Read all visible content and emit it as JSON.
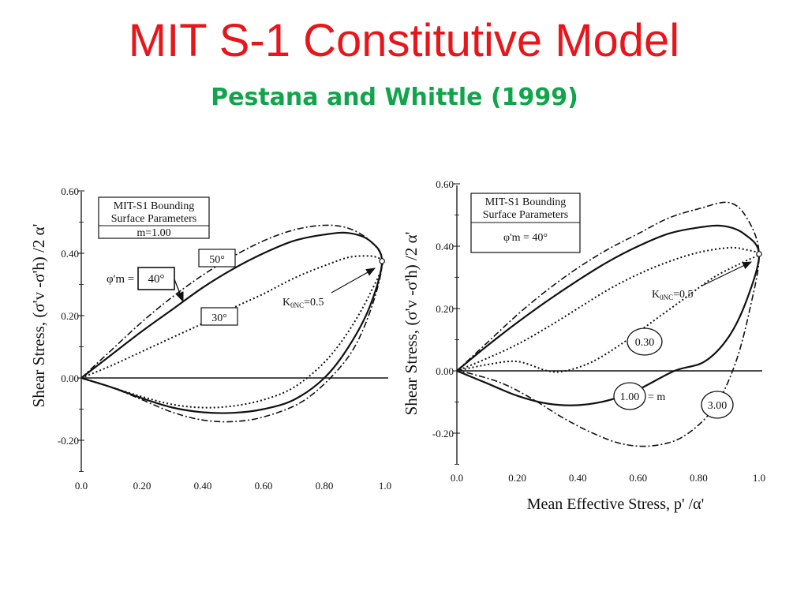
{
  "slide": {
    "title": "MIT S-1 Constitutive Model",
    "subtitle": "Pestana and Whittle (1999)"
  },
  "colors": {
    "title": "#e8161b",
    "subtitle": "#10a54a",
    "curves": "#111111"
  },
  "chart_data": [
    {
      "type": "line",
      "title": "",
      "xlabel": "",
      "ylabel": "Shear Stress, (σ'v -σ'h) /2 α'",
      "xlim": [
        0.0,
        1.0
      ],
      "ylim": [
        -0.3,
        0.6
      ],
      "x_ticks": [
        "0.0",
        "0.20",
        "0.40",
        "0.60",
        "0.80",
        "1.0"
      ],
      "y_ticks": [
        "0.60",
        "0.40",
        "0.20",
        "0.00",
        "-0.20"
      ],
      "legend_box": [
        "MIT-S1 Bounding",
        "Surface Parameters",
        "m=1.00"
      ],
      "labels": {
        "phi": "φ'm =",
        "phi_center": "40°",
        "phi_high": "50°",
        "phi_low": "30°",
        "k0": "K0NC=0.5"
      },
      "k0_point": {
        "x": 0.99,
        "y": 0.375
      },
      "series": [
        {
          "name": "50°",
          "style": "dash-dot",
          "points": [
            [
              0,
              0
            ],
            [
              0.1,
              0.09
            ],
            [
              0.2,
              0.18
            ],
            [
              0.3,
              0.26
            ],
            [
              0.4,
              0.33
            ],
            [
              0.5,
              0.39
            ],
            [
              0.6,
              0.44
            ],
            [
              0.7,
              0.475
            ],
            [
              0.8,
              0.49
            ],
            [
              0.88,
              0.48
            ],
            [
              0.95,
              0.44
            ],
            [
              0.99,
              0.375
            ],
            [
              0.96,
              0.24
            ],
            [
              0.9,
              0.1
            ],
            [
              0.82,
              0.0
            ],
            [
              0.72,
              -0.08
            ],
            [
              0.6,
              -0.125
            ],
            [
              0.5,
              -0.14
            ],
            [
              0.4,
              -0.135
            ],
            [
              0.3,
              -0.11
            ],
            [
              0.2,
              -0.07
            ],
            [
              0.1,
              -0.03
            ],
            [
              0,
              0
            ]
          ]
        },
        {
          "name": "40°",
          "style": "solid",
          "points": [
            [
              0,
              0
            ],
            [
              0.1,
              0.075
            ],
            [
              0.2,
              0.15
            ],
            [
              0.3,
              0.22
            ],
            [
              0.4,
              0.29
            ],
            [
              0.5,
              0.35
            ],
            [
              0.6,
              0.4
            ],
            [
              0.7,
              0.44
            ],
            [
              0.8,
              0.46
            ],
            [
              0.88,
              0.465
            ],
            [
              0.95,
              0.44
            ],
            [
              0.99,
              0.375
            ],
            [
              0.95,
              0.23
            ],
            [
              0.88,
              0.1
            ],
            [
              0.8,
              0.0
            ],
            [
              0.7,
              -0.07
            ],
            [
              0.6,
              -0.1
            ],
            [
              0.5,
              -0.112
            ],
            [
              0.4,
              -0.11
            ],
            [
              0.3,
              -0.095
            ],
            [
              0.2,
              -0.065
            ],
            [
              0.1,
              -0.03
            ],
            [
              0,
              0
            ]
          ]
        },
        {
          "name": "30°",
          "style": "dotted",
          "points": [
            [
              0,
              0
            ],
            [
              0.1,
              0.04
            ],
            [
              0.2,
              0.085
            ],
            [
              0.3,
              0.13
            ],
            [
              0.4,
              0.175
            ],
            [
              0.5,
              0.225
            ],
            [
              0.6,
              0.27
            ],
            [
              0.7,
              0.32
            ],
            [
              0.8,
              0.36
            ],
            [
              0.9,
              0.39
            ],
            [
              0.99,
              0.375
            ],
            [
              0.95,
              0.27
            ],
            [
              0.88,
              0.15
            ],
            [
              0.8,
              0.05
            ],
            [
              0.7,
              -0.03
            ],
            [
              0.6,
              -0.07
            ],
            [
              0.5,
              -0.09
            ],
            [
              0.4,
              -0.095
            ],
            [
              0.3,
              -0.085
            ],
            [
              0.2,
              -0.06
            ],
            [
              0.1,
              -0.03
            ],
            [
              0,
              0
            ]
          ]
        }
      ]
    },
    {
      "type": "line",
      "title": "",
      "xlabel": "Mean Effective Stress, p' /α'",
      "ylabel": "Shear Stress, (σ'v -σ'h) /2 α'",
      "xlim": [
        0.0,
        1.0
      ],
      "ylim": [
        -0.3,
        0.6
      ],
      "x_ticks": [
        "0.0",
        "0.20",
        "0.40",
        "0.60",
        "0.80",
        "1.0"
      ],
      "y_ticks": [
        "0.60",
        "0.40",
        "0.20",
        "0.00",
        "-0.20"
      ],
      "legend_box": [
        "MIT-S1 Bounding",
        "Surface Parameters",
        "φ'm = 40°"
      ],
      "labels": {
        "k0": "K0NC=0.5",
        "m_low": "0.30",
        "m_mid": "1.00",
        "m_mid_suffix": "= m",
        "m_high": "3.00"
      },
      "k0_point": {
        "x": 1.0,
        "y": 0.375
      },
      "series": [
        {
          "name": "3.00",
          "style": "dash-dot",
          "points": [
            [
              0,
              0
            ],
            [
              0.1,
              0.09
            ],
            [
              0.2,
              0.18
            ],
            [
              0.3,
              0.26
            ],
            [
              0.4,
              0.33
            ],
            [
              0.5,
              0.39
            ],
            [
              0.6,
              0.44
            ],
            [
              0.7,
              0.49
            ],
            [
              0.8,
              0.52
            ],
            [
              0.9,
              0.54
            ],
            [
              0.96,
              0.49
            ],
            [
              1.0,
              0.375
            ],
            [
              0.97,
              0.2
            ],
            [
              0.92,
              0.02
            ],
            [
              0.85,
              -0.12
            ],
            [
              0.75,
              -0.21
            ],
            [
              0.65,
              -0.24
            ],
            [
              0.55,
              -0.235
            ],
            [
              0.45,
              -0.2
            ],
            [
              0.35,
              -0.15
            ],
            [
              0.25,
              -0.09
            ],
            [
              0.15,
              -0.04
            ],
            [
              0.05,
              -0.01
            ],
            [
              0,
              0
            ]
          ]
        },
        {
          "name": "1.00",
          "style": "solid",
          "points": [
            [
              0,
              0
            ],
            [
              0.1,
              0.08
            ],
            [
              0.2,
              0.155
            ],
            [
              0.3,
              0.225
            ],
            [
              0.4,
              0.29
            ],
            [
              0.5,
              0.35
            ],
            [
              0.6,
              0.4
            ],
            [
              0.7,
              0.44
            ],
            [
              0.8,
              0.46
            ],
            [
              0.88,
              0.465
            ],
            [
              0.95,
              0.44
            ],
            [
              1.0,
              0.375
            ],
            [
              0.96,
              0.23
            ],
            [
              0.9,
              0.11
            ],
            [
              0.82,
              0.03
            ],
            [
              0.72,
              0.0
            ],
            [
              0.6,
              -0.06
            ],
            [
              0.5,
              -0.095
            ],
            [
              0.4,
              -0.11
            ],
            [
              0.3,
              -0.105
            ],
            [
              0.2,
              -0.08
            ],
            [
              0.1,
              -0.04
            ],
            [
              0,
              0
            ]
          ]
        },
        {
          "name": "0.30",
          "style": "dotted",
          "points": [
            [
              0,
              0
            ],
            [
              0.1,
              0.02
            ],
            [
              0.2,
              0.03
            ],
            [
              0.3,
              0.0
            ],
            [
              0.36,
              0.0
            ],
            [
              0.45,
              0.03
            ],
            [
              0.55,
              0.09
            ],
            [
              0.65,
              0.16
            ],
            [
              0.75,
              0.23
            ],
            [
              0.85,
              0.3
            ],
            [
              0.95,
              0.35
            ],
            [
              1.0,
              0.375
            ],
            [
              0.95,
              0.39
            ],
            [
              0.9,
              0.395
            ],
            [
              0.8,
              0.38
            ],
            [
              0.7,
              0.35
            ],
            [
              0.6,
              0.31
            ],
            [
              0.5,
              0.26
            ],
            [
              0.4,
              0.2
            ],
            [
              0.3,
              0.14
            ],
            [
              0.2,
              0.085
            ],
            [
              0.1,
              0.04
            ],
            [
              0,
              0
            ]
          ]
        }
      ]
    }
  ]
}
